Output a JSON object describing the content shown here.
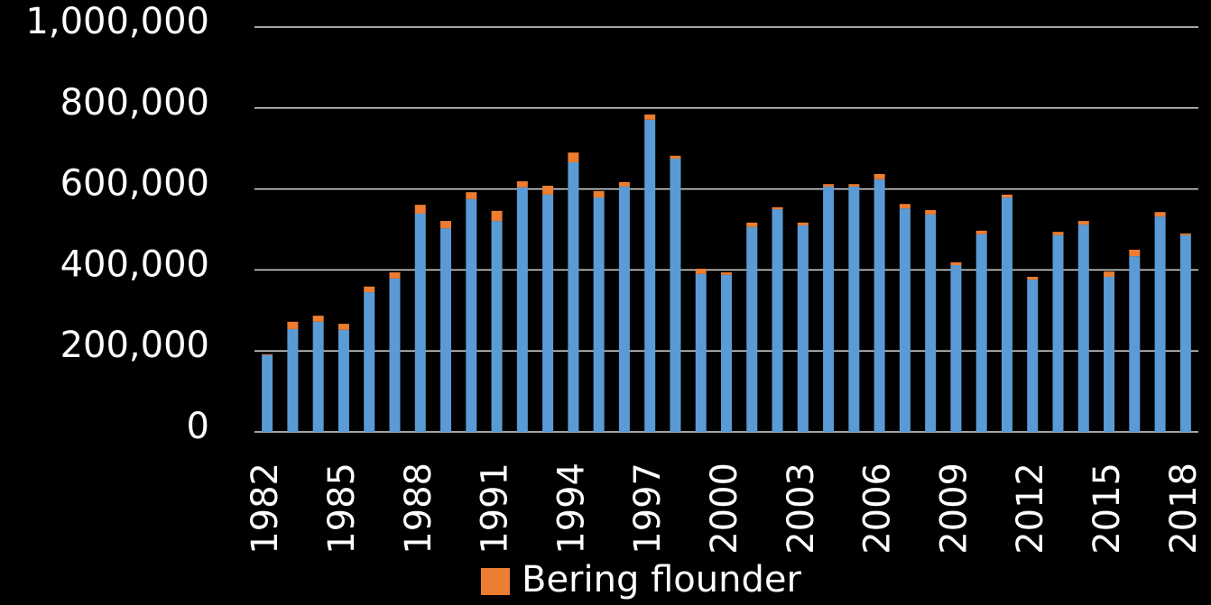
{
  "chart_data": {
    "type": "stacked_bar",
    "categories": [
      "1982",
      null,
      null,
      "1985",
      null,
      null,
      "1988",
      null,
      null,
      "1991",
      null,
      null,
      "1994",
      null,
      null,
      "1997",
      null,
      null,
      "2000",
      null,
      null,
      "2003",
      null,
      null,
      "2006",
      null,
      null,
      "2009",
      null,
      null,
      "2012",
      null,
      null,
      "2015",
      null,
      null,
      "2018"
    ],
    "series": [
      {
        "color": "#5b9bd5",
        "values": [
          190000,
          254000,
          272000,
          252000,
          345000,
          379000,
          539000,
          503000,
          575000,
          521000,
          604000,
          586000,
          666000,
          579000,
          606000,
          771000,
          675000,
          390000,
          388000,
          506000,
          550000,
          510000,
          606000,
          606000,
          624000,
          552000,
          537000,
          412000,
          488000,
          579000,
          376000,
          486000,
          512000,
          383000,
          434000,
          532000,
          486000
        ]
      },
      {
        "name": "Bering flounder",
        "color": "#ed7d31",
        "values": [
          2000,
          18000,
          15000,
          15000,
          14000,
          15000,
          22000,
          18000,
          17000,
          25000,
          15000,
          22000,
          24000,
          16000,
          11000,
          13000,
          7000,
          13000,
          6000,
          11000,
          5000,
          7000,
          6000,
          6000,
          13000,
          11000,
          11000,
          7000,
          9000,
          7000,
          7000,
          8000,
          9000,
          13000,
          16000,
          11000,
          4000
        ]
      }
    ],
    "ylim": [
      0,
      1000000
    ],
    "yticks": [
      0,
      {
        "value": 200000,
        "label": "200,000"
      },
      {
        "value": 400000,
        "label": "400,000"
      },
      {
        "value": 600000,
        "label": "600,000"
      },
      {
        "value": 800000,
        "label": "800,000"
      },
      {
        "value": 1000000,
        "label": "1,000,000"
      }
    ],
    "grid": true,
    "legend": "bottom"
  }
}
